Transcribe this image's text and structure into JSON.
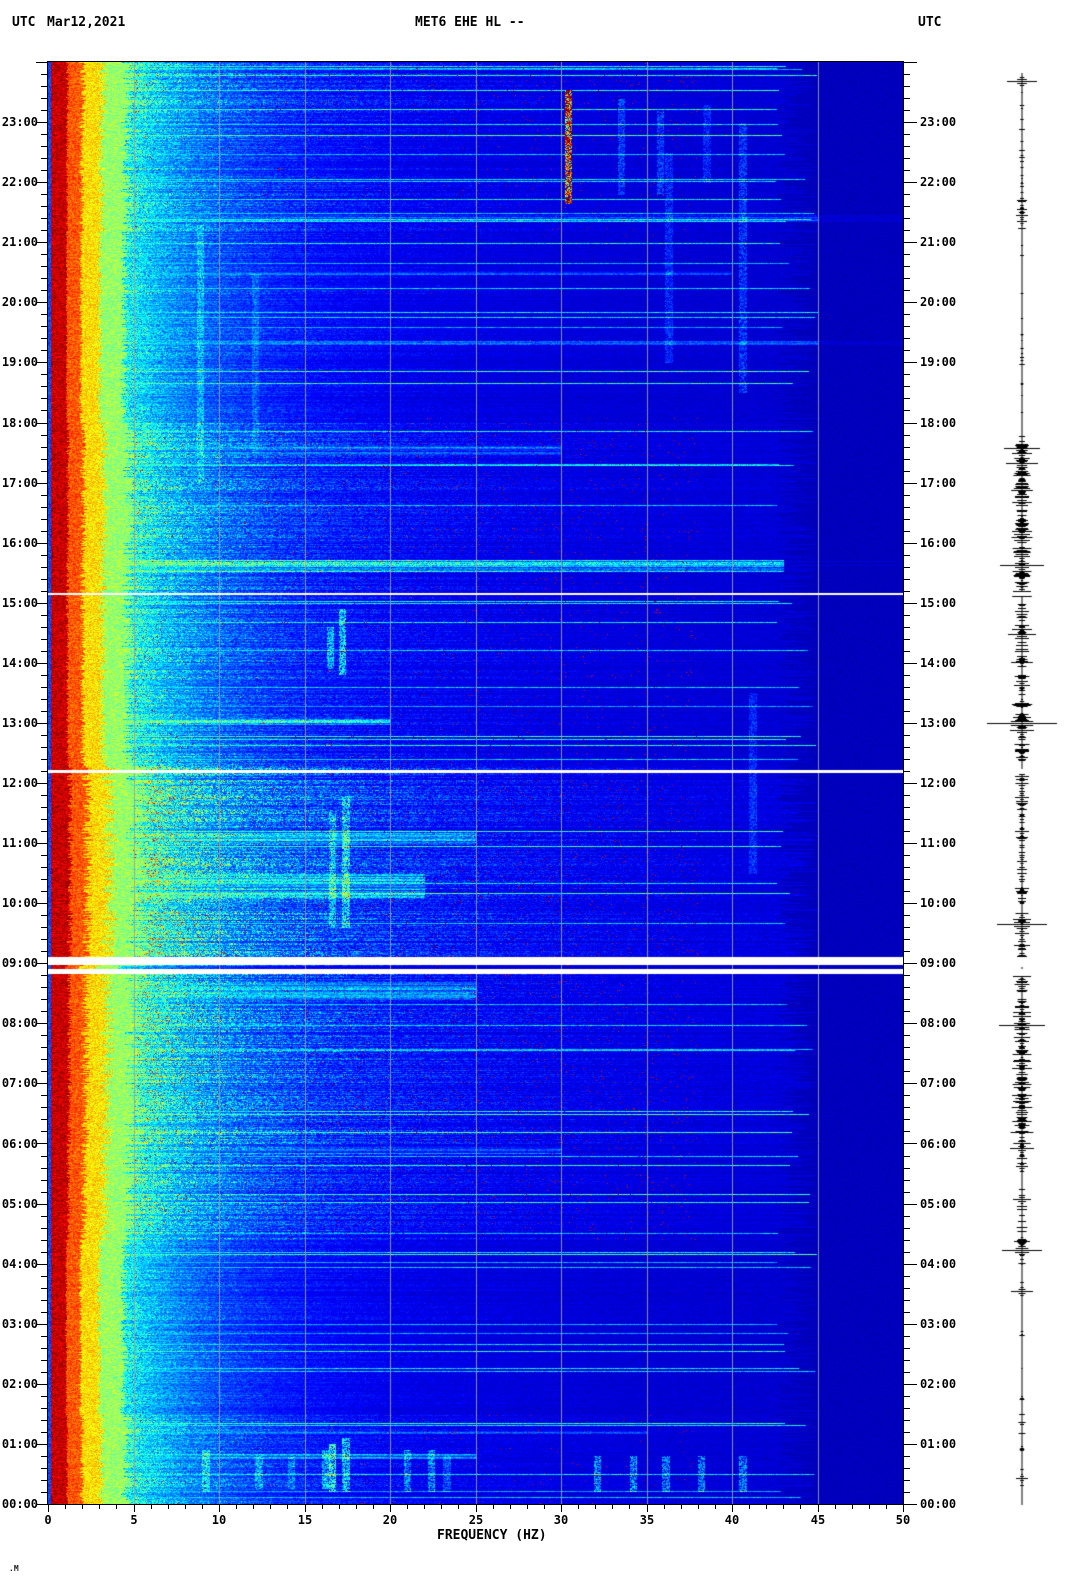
{
  "header": {
    "tz_left": "UTC",
    "date": "Mar12,2021",
    "title": "MET6 EHE HL --",
    "tz_right": "UTC"
  },
  "x_axis": {
    "label": "FREQUENCY (HZ)",
    "major_tick_labels": [
      "0",
      "5",
      "10",
      "15",
      "20",
      "25",
      "30",
      "35",
      "40",
      "45",
      "50"
    ],
    "min_hz": 0,
    "max_hz": 50,
    "minor_step_hz": 1,
    "major_step_hz": 5
  },
  "time_axis": {
    "labels": [
      "23:00",
      "22:00",
      "21:00",
      "20:00",
      "19:00",
      "18:00",
      "17:00",
      "16:00",
      "15:00",
      "14:00",
      "13:00",
      "12:00",
      "11:00",
      "10:00",
      "09:00",
      "08:00",
      "07:00",
      "06:00",
      "05:00",
      "04:00",
      "03:00",
      "02:00",
      "01:00",
      "00:00"
    ],
    "minor_tick_minutes": 12,
    "top_hour": 24,
    "bottom_hour": 0
  },
  "footer_mark": ".M",
  "colors": {
    "grid": "#9c9c9c",
    "axis": "#000000",
    "text": "#000000",
    "page_bg": "#ffffff",
    "flat_field": "#0000b8",
    "gap": "#ffffff"
  },
  "chart_data": {
    "type": "heatmap",
    "title": "MET6 EHE HL --",
    "date": "Mar12,2021",
    "timezone": "UTC",
    "xlabel": "FREQUENCY (HZ)",
    "xlim": [
      0,
      50
    ],
    "grid_x_hz": [
      5,
      10,
      15,
      20,
      25,
      30,
      35,
      40,
      45
    ],
    "ylim_hours_utc": [
      0,
      24
    ],
    "y_direction": "00:00 at bottom, 24:00 at top",
    "colormap": "jet",
    "persistent_band": {
      "freq_hz": [
        0.2,
        3.2
      ],
      "description": "saturated red/yellow microseism band at left edge, full 24 h"
    },
    "right_flat_above_hz": 43.5,
    "data_gaps": [
      {
        "t_lo": 8.97,
        "t_hi": 9.1,
        "style": "white band"
      },
      {
        "t_lo": 8.82,
        "t_hi": 8.9,
        "style": "white band"
      },
      {
        "t_lo": 12.17,
        "t_hi": 12.22,
        "style": "thin white line"
      },
      {
        "t_lo": 15.13,
        "t_hi": 15.17,
        "style": "thin white line"
      }
    ],
    "dim_rows": [
      {
        "t_lo": 8.9,
        "t_hi": 8.97
      }
    ],
    "activity_periods": [
      {
        "t0": 23.2,
        "t1": 24.0,
        "amp": 0.3
      },
      {
        "t0": 21.2,
        "t1": 23.2,
        "amp": 0.22
      },
      {
        "t0": 18.0,
        "t1": 21.2,
        "amp": 0.17
      },
      {
        "t0": 15.8,
        "t1": 18.0,
        "amp": 0.3
      },
      {
        "t0": 12.3,
        "t1": 15.8,
        "amp": 0.26
      },
      {
        "t0": 9.3,
        "t1": 12.3,
        "amp": 0.5
      },
      {
        "t0": 8.82,
        "t1": 9.3,
        "amp": 0.45
      },
      {
        "t0": 6.0,
        "t1": 8.82,
        "amp": 0.42
      },
      {
        "t0": 4.4,
        "t1": 6.0,
        "amp": 0.32
      },
      {
        "t0": 1.5,
        "t1": 4.4,
        "amp": 0.15
      },
      {
        "t0": 0.0,
        "t1": 1.5,
        "amp": 0.22
      }
    ],
    "band_events": [
      {
        "t": 15.62,
        "dt": 0.1,
        "amp": 0.55,
        "fmax": 43
      },
      {
        "t": 13.02,
        "dt": 0.05,
        "amp": 0.5,
        "fmax": 20
      },
      {
        "t": 10.3,
        "dt": 0.2,
        "amp": 0.45,
        "fmax": 22
      },
      {
        "t": 11.1,
        "dt": 0.12,
        "amp": 0.42,
        "fmax": 25
      },
      {
        "t": 17.55,
        "dt": 0.08,
        "amp": 0.35,
        "fmax": 30
      },
      {
        "t": 21.4,
        "dt": 0.06,
        "amp": 0.35,
        "fmax": 45
      },
      {
        "t": 19.33,
        "dt": 0.03,
        "amp": 0.35,
        "fmax": 45
      },
      {
        "t": 20.5,
        "dt": 0.03,
        "amp": 0.3,
        "fmax": 40
      },
      {
        "t": 8.55,
        "dt": 0.15,
        "amp": 0.4,
        "fmax": 25
      },
      {
        "t": 5.9,
        "dt": 0.06,
        "amp": 0.35,
        "fmax": 30
      },
      {
        "t": 0.8,
        "dt": 0.04,
        "amp": 0.4,
        "fmax": 25
      },
      {
        "t": 1.2,
        "dt": 0.03,
        "amp": 0.3,
        "fmax": 35
      }
    ],
    "vertical_stripes": [
      {
        "hz": 30.4,
        "t0": 21.65,
        "t1": 23.55,
        "amp": 0.75
      },
      {
        "hz": 30.4,
        "t0": 21.65,
        "t1": 23.55,
        "amp": 0.3
      },
      {
        "hz": 17.4,
        "t0": 0.2,
        "t1": 1.1,
        "amp": 0.25
      },
      {
        "hz": 16.6,
        "t0": 0.2,
        "t1": 1.0,
        "amp": 0.3
      },
      {
        "hz": 16.2,
        "t0": 0.25,
        "t1": 0.9,
        "amp": 0.2
      },
      {
        "hz": 9.2,
        "t0": 0.2,
        "t1": 0.9,
        "amp": 0.18
      },
      {
        "hz": 12.3,
        "t0": 0.25,
        "t1": 0.8,
        "amp": 0.15
      },
      {
        "hz": 14.2,
        "t0": 0.25,
        "t1": 0.8,
        "amp": 0.12
      },
      {
        "hz": 21.0,
        "t0": 0.2,
        "t1": 0.9,
        "amp": 0.18
      },
      {
        "hz": 22.4,
        "t0": 0.2,
        "t1": 0.9,
        "amp": 0.18
      },
      {
        "hz": 23.3,
        "t0": 0.2,
        "t1": 0.8,
        "amp": 0.12
      },
      {
        "hz": 32.1,
        "t0": 0.2,
        "t1": 0.8,
        "amp": 0.22
      },
      {
        "hz": 34.2,
        "t0": 0.2,
        "t1": 0.8,
        "amp": 0.22
      },
      {
        "hz": 36.1,
        "t0": 0.2,
        "t1": 0.8,
        "amp": 0.2
      },
      {
        "hz": 38.2,
        "t0": 0.2,
        "t1": 0.8,
        "amp": 0.2
      },
      {
        "hz": 40.6,
        "t0": 0.2,
        "t1": 0.8,
        "amp": 0.2
      },
      {
        "hz": 17.2,
        "t0": 13.8,
        "t1": 14.9,
        "amp": 0.25
      },
      {
        "hz": 16.5,
        "t0": 13.9,
        "t1": 14.6,
        "amp": 0.2
      },
      {
        "hz": 17.4,
        "t0": 9.6,
        "t1": 11.8,
        "amp": 0.22
      },
      {
        "hz": 16.6,
        "t0": 9.6,
        "t1": 11.5,
        "amp": 0.18
      },
      {
        "hz": 8.9,
        "t0": 17.0,
        "t1": 21.3,
        "amp": 0.12
      },
      {
        "hz": 12.1,
        "t0": 17.5,
        "t1": 20.5,
        "amp": 0.08
      },
      {
        "hz": 40.6,
        "t0": 18.5,
        "t1": 23.0,
        "amp": 0.12
      },
      {
        "hz": 36.3,
        "t0": 19.0,
        "t1": 22.5,
        "amp": 0.1
      },
      {
        "hz": 33.5,
        "t0": 21.8,
        "t1": 23.4,
        "amp": 0.12
      },
      {
        "hz": 35.8,
        "t0": 21.8,
        "t1": 23.2,
        "amp": 0.12
      },
      {
        "hz": 38.5,
        "t0": 22.0,
        "t1": 23.3,
        "amp": 0.1
      },
      {
        "hz": 41.2,
        "t0": 10.5,
        "t1": 13.5,
        "amp": 0.1
      }
    ],
    "trace": {
      "description": "helicorder amplitude line, right margin",
      "events": [
        {
          "t": 23.68,
          "hw": 15
        },
        {
          "t": 21.55,
          "hw": 5
        },
        {
          "t": 21.45,
          "hw": 6
        },
        {
          "t": 21.35,
          "hw": 5
        },
        {
          "t": 17.58,
          "hw": 18
        },
        {
          "t": 17.5,
          "hw": 10
        },
        {
          "t": 17.33,
          "hw": 16
        },
        {
          "t": 16.87,
          "hw": 8
        },
        {
          "t": 16.37,
          "hw": 6
        },
        {
          "t": 15.77,
          "hw": 8
        },
        {
          "t": 15.62,
          "hw": 22
        },
        {
          "t": 15.45,
          "hw": 8
        },
        {
          "t": 15.2,
          "hw": 9
        },
        {
          "t": 14.57,
          "hw": 10
        },
        {
          "t": 14.48,
          "hw": 14
        },
        {
          "t": 14.03,
          "hw": 6
        },
        {
          "t": 13.63,
          "hw": 8
        },
        {
          "t": 13.33,
          "hw": 7
        },
        {
          "t": 13.1,
          "hw": 9
        },
        {
          "t": 13.0,
          "hw": 35
        },
        {
          "t": 12.88,
          "hw": 12
        },
        {
          "t": 12.53,
          "hw": 7
        },
        {
          "t": 12.12,
          "hw": 7
        },
        {
          "t": 11.7,
          "hw": 6
        },
        {
          "t": 11.2,
          "hw": 7
        },
        {
          "t": 10.7,
          "hw": 5
        },
        {
          "t": 10.2,
          "hw": 6
        },
        {
          "t": 9.73,
          "hw": 9
        },
        {
          "t": 9.65,
          "hw": 25
        },
        {
          "t": 9.5,
          "hw": 7
        },
        {
          "t": 8.78,
          "hw": 5
        },
        {
          "t": 8.28,
          "hw": 7
        },
        {
          "t": 8.12,
          "hw": 9
        },
        {
          "t": 7.98,
          "hw": 23
        },
        {
          "t": 7.7,
          "hw": 7
        },
        {
          "t": 7.37,
          "hw": 9
        },
        {
          "t": 7.03,
          "hw": 7
        },
        {
          "t": 6.7,
          "hw": 9
        },
        {
          "t": 6.37,
          "hw": 7
        },
        {
          "t": 5.93,
          "hw": 12
        },
        {
          "t": 5.62,
          "hw": 6
        },
        {
          "t": 5.08,
          "hw": 9
        },
        {
          "t": 4.37,
          "hw": 8
        },
        {
          "t": 4.23,
          "hw": 20
        },
        {
          "t": 3.55,
          "hw": 11
        },
        {
          "t": 0.43,
          "hw": 6
        }
      ],
      "regions": [
        {
          "t0": 0.0,
          "t1": 1.5,
          "base": 2.0,
          "p": 0.12
        },
        {
          "t0": 1.5,
          "t1": 4.0,
          "base": 1.2,
          "p": 0.06
        },
        {
          "t0": 4.0,
          "t1": 6.0,
          "base": 3.5,
          "p": 0.3
        },
        {
          "t0": 6.0,
          "t1": 9.3,
          "base": 5.0,
          "p": 0.45
        },
        {
          "t0": 9.3,
          "t1": 13.0,
          "base": 4.0,
          "p": 0.35
        },
        {
          "t0": 13.0,
          "t1": 17.7,
          "base": 5.0,
          "p": 0.45
        },
        {
          "t0": 17.7,
          "t1": 21.0,
          "base": 1.5,
          "p": 0.1
        },
        {
          "t0": 21.0,
          "t1": 22.0,
          "base": 2.5,
          "p": 0.2
        },
        {
          "t0": 22.0,
          "t1": 24.0,
          "base": 1.5,
          "p": 0.12
        }
      ]
    }
  }
}
